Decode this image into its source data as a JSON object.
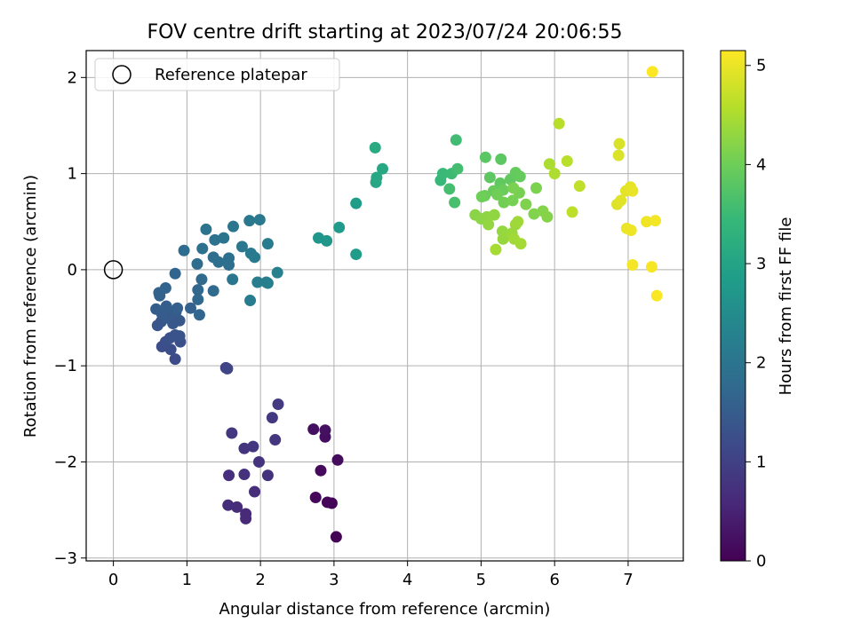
{
  "chart_data": {
    "type": "scatter",
    "title": "FOV centre drift starting at 2023/07/24 20:06:55",
    "xlabel": "Angular distance from reference (arcmin)",
    "ylabel": "Rotation from reference (arcmin)",
    "xlim": [
      -0.37,
      7.75
    ],
    "ylim": [
      -3.03,
      2.28
    ],
    "xticks": [
      0,
      1,
      2,
      3,
      4,
      5,
      6,
      7
    ],
    "yticks": [
      -3,
      -2,
      -1,
      0,
      1,
      2
    ],
    "grid": true,
    "legend": {
      "placement": "top-left",
      "entries": [
        "Reference platepar"
      ]
    },
    "reference_point": {
      "x": 0,
      "y": 0,
      "label": "Reference platepar"
    },
    "colorbar": {
      "label": "Hours from first FF file",
      "range": [
        0,
        5.15
      ],
      "ticks": [
        0,
        1,
        2,
        3,
        4,
        5
      ],
      "colormap": "viridis",
      "stops": [
        "#440154",
        "#482878",
        "#3e4989",
        "#31688e",
        "#26828e",
        "#1f9e89",
        "#35b779",
        "#6ece58",
        "#b5de2b",
        "#fde725"
      ]
    },
    "points": [
      {
        "x": 3.03,
        "y": -2.78,
        "h": 0.02
      },
      {
        "x": 2.97,
        "y": -2.43,
        "h": 0.05
      },
      {
        "x": 2.91,
        "y": -2.42,
        "h": 0.08
      },
      {
        "x": 2.75,
        "y": -2.37,
        "h": 0.1
      },
      {
        "x": 2.82,
        "y": -2.09,
        "h": 0.13
      },
      {
        "x": 3.05,
        "y": -1.98,
        "h": 0.16
      },
      {
        "x": 2.88,
        "y": -1.74,
        "h": 0.18
      },
      {
        "x": 2.72,
        "y": -1.66,
        "h": 0.2
      },
      {
        "x": 2.88,
        "y": -1.67,
        "h": 0.22
      },
      {
        "x": 1.8,
        "y": -2.59,
        "h": 0.6
      },
      {
        "x": 1.8,
        "y": -2.54,
        "h": 0.62
      },
      {
        "x": 1.68,
        "y": -2.47,
        "h": 0.64
      },
      {
        "x": 1.56,
        "y": -2.45,
        "h": 0.66
      },
      {
        "x": 1.92,
        "y": -2.31,
        "h": 0.68
      },
      {
        "x": 1.57,
        "y": -2.14,
        "h": 0.7
      },
      {
        "x": 1.78,
        "y": -2.13,
        "h": 0.72
      },
      {
        "x": 2.1,
        "y": -2.14,
        "h": 0.74
      },
      {
        "x": 1.98,
        "y": -2.0,
        "h": 0.76
      },
      {
        "x": 1.78,
        "y": -1.86,
        "h": 0.78
      },
      {
        "x": 1.9,
        "y": -1.84,
        "h": 0.8
      },
      {
        "x": 2.2,
        "y": -1.77,
        "h": 0.82
      },
      {
        "x": 1.61,
        "y": -1.7,
        "h": 0.84
      },
      {
        "x": 2.16,
        "y": -1.54,
        "h": 0.86
      },
      {
        "x": 2.24,
        "y": -1.4,
        "h": 0.88
      },
      {
        "x": 1.53,
        "y": -1.02,
        "h": 1.05
      },
      {
        "x": 1.55,
        "y": -1.03,
        "h": 1.07
      },
      {
        "x": 0.84,
        "y": -0.93,
        "h": 1.2
      },
      {
        "x": 0.66,
        "y": -0.8,
        "h": 1.22
      },
      {
        "x": 0.78,
        "y": -0.83,
        "h": 1.24
      },
      {
        "x": 0.71,
        "y": -0.75,
        "h": 1.26
      },
      {
        "x": 0.91,
        "y": -0.75,
        "h": 1.28
      },
      {
        "x": 0.77,
        "y": -0.71,
        "h": 1.3
      },
      {
        "x": 0.9,
        "y": -0.69,
        "h": 1.32
      },
      {
        "x": 0.84,
        "y": -0.68,
        "h": 1.34
      },
      {
        "x": 0.6,
        "y": -0.58,
        "h": 1.36
      },
      {
        "x": 0.65,
        "y": -0.54,
        "h": 1.38
      },
      {
        "x": 0.81,
        "y": -0.56,
        "h": 1.4
      },
      {
        "x": 0.9,
        "y": -0.53,
        "h": 1.42
      },
      {
        "x": 0.72,
        "y": -0.5,
        "h": 1.44
      },
      {
        "x": 0.78,
        "y": -0.47,
        "h": 1.46
      },
      {
        "x": 0.66,
        "y": -0.46,
        "h": 1.48
      },
      {
        "x": 0.85,
        "y": -0.44,
        "h": 1.5
      },
      {
        "x": 0.58,
        "y": -0.41,
        "h": 1.52
      },
      {
        "x": 0.72,
        "y": -0.38,
        "h": 1.54
      },
      {
        "x": 0.87,
        "y": -0.4,
        "h": 1.56
      },
      {
        "x": 1.05,
        "y": -0.4,
        "h": 1.58
      },
      {
        "x": 0.63,
        "y": -0.27,
        "h": 1.6
      },
      {
        "x": 0.62,
        "y": -0.24,
        "h": 1.62
      },
      {
        "x": 0.71,
        "y": -0.19,
        "h": 1.64
      },
      {
        "x": 0.84,
        "y": -0.04,
        "h": 1.66
      },
      {
        "x": 1.17,
        "y": -0.47,
        "h": 1.7
      },
      {
        "x": 1.15,
        "y": -0.31,
        "h": 1.72
      },
      {
        "x": 1.15,
        "y": -0.21,
        "h": 1.74
      },
      {
        "x": 1.36,
        "y": -0.22,
        "h": 1.76
      },
      {
        "x": 1.2,
        "y": -0.1,
        "h": 1.78
      },
      {
        "x": 1.14,
        "y": 0.06,
        "h": 1.8
      },
      {
        "x": 0.96,
        "y": 0.2,
        "h": 1.82
      },
      {
        "x": 1.36,
        "y": 0.13,
        "h": 1.84
      },
      {
        "x": 1.43,
        "y": 0.08,
        "h": 1.86
      },
      {
        "x": 1.57,
        "y": 0.05,
        "h": 1.88
      },
      {
        "x": 1.57,
        "y": 0.12,
        "h": 1.9
      },
      {
        "x": 1.21,
        "y": 0.22,
        "h": 1.92
      },
      {
        "x": 1.38,
        "y": 0.31,
        "h": 1.94
      },
      {
        "x": 1.5,
        "y": 0.33,
        "h": 1.96
      },
      {
        "x": 1.26,
        "y": 0.42,
        "h": 1.98
      },
      {
        "x": 1.63,
        "y": 0.45,
        "h": 2.0
      },
      {
        "x": 1.62,
        "y": -0.1,
        "h": 2.02
      },
      {
        "x": 1.75,
        "y": 0.24,
        "h": 2.04
      },
      {
        "x": 1.85,
        "y": 0.51,
        "h": 2.06
      },
      {
        "x": 1.99,
        "y": 0.52,
        "h": 2.08
      },
      {
        "x": 1.87,
        "y": 0.17,
        "h": 2.1
      },
      {
        "x": 1.92,
        "y": 0.13,
        "h": 2.12
      },
      {
        "x": 2.1,
        "y": 0.27,
        "h": 2.14
      },
      {
        "x": 1.86,
        "y": -0.32,
        "h": 2.16
      },
      {
        "x": 1.96,
        "y": -0.13,
        "h": 2.18
      },
      {
        "x": 2.08,
        "y": -0.13,
        "h": 2.2
      },
      {
        "x": 2.1,
        "y": -0.14,
        "h": 2.22
      },
      {
        "x": 2.23,
        "y": -0.03,
        "h": 2.24
      },
      {
        "x": 2.79,
        "y": 0.33,
        "h": 2.7
      },
      {
        "x": 2.9,
        "y": 0.3,
        "h": 2.72
      },
      {
        "x": 3.07,
        "y": 0.44,
        "h": 2.78
      },
      {
        "x": 3.3,
        "y": 0.16,
        "h": 2.82
      },
      {
        "x": 3.3,
        "y": 0.69,
        "h": 2.85
      },
      {
        "x": 3.57,
        "y": 0.91,
        "h": 3.05
      },
      {
        "x": 3.58,
        "y": 0.96,
        "h": 3.07
      },
      {
        "x": 3.66,
        "y": 1.05,
        "h": 3.1
      },
      {
        "x": 3.56,
        "y": 1.27,
        "h": 3.13
      },
      {
        "x": 4.45,
        "y": 0.93,
        "h": 3.45
      },
      {
        "x": 4.48,
        "y": 1.0,
        "h": 3.47
      },
      {
        "x": 4.6,
        "y": 1.0,
        "h": 3.5
      },
      {
        "x": 4.66,
        "y": 1.35,
        "h": 3.55
      },
      {
        "x": 4.68,
        "y": 1.05,
        "h": 3.58
      },
      {
        "x": 4.57,
        "y": 0.84,
        "h": 3.6
      },
      {
        "x": 4.64,
        "y": 0.7,
        "h": 3.63
      },
      {
        "x": 5.06,
        "y": 1.17,
        "h": 3.8
      },
      {
        "x": 5.27,
        "y": 1.15,
        "h": 3.82
      },
      {
        "x": 5.12,
        "y": 0.96,
        "h": 3.84
      },
      {
        "x": 5.26,
        "y": 0.9,
        "h": 3.86
      },
      {
        "x": 5.4,
        "y": 0.94,
        "h": 3.88
      },
      {
        "x": 5.47,
        "y": 1.01,
        "h": 3.9
      },
      {
        "x": 5.53,
        "y": 0.97,
        "h": 3.92
      },
      {
        "x": 5.17,
        "y": 0.82,
        "h": 3.94
      },
      {
        "x": 5.3,
        "y": 0.83,
        "h": 3.96
      },
      {
        "x": 5.05,
        "y": 0.77,
        "h": 3.98
      },
      {
        "x": 5.01,
        "y": 0.76,
        "h": 4.0
      },
      {
        "x": 5.22,
        "y": 0.78,
        "h": 4.02
      },
      {
        "x": 5.31,
        "y": 0.7,
        "h": 4.04
      },
      {
        "x": 5.43,
        "y": 0.72,
        "h": 4.06
      },
      {
        "x": 5.52,
        "y": 0.8,
        "h": 4.08
      },
      {
        "x": 5.44,
        "y": 0.85,
        "h": 4.1
      },
      {
        "x": 5.75,
        "y": 0.85,
        "h": 4.12
      },
      {
        "x": 5.61,
        "y": 0.68,
        "h": 4.14
      },
      {
        "x": 5.72,
        "y": 0.58,
        "h": 4.16
      },
      {
        "x": 5.84,
        "y": 0.61,
        "h": 4.18
      },
      {
        "x": 5.9,
        "y": 0.55,
        "h": 4.2
      },
      {
        "x": 4.92,
        "y": 0.57,
        "h": 4.22
      },
      {
        "x": 5.0,
        "y": 0.53,
        "h": 4.24
      },
      {
        "x": 5.08,
        "y": 0.55,
        "h": 4.26
      },
      {
        "x": 5.18,
        "y": 0.57,
        "h": 4.28
      },
      {
        "x": 5.1,
        "y": 0.47,
        "h": 4.3
      },
      {
        "x": 5.29,
        "y": 0.4,
        "h": 4.32
      },
      {
        "x": 5.3,
        "y": 0.32,
        "h": 4.34
      },
      {
        "x": 5.42,
        "y": 0.38,
        "h": 4.36
      },
      {
        "x": 5.47,
        "y": 0.47,
        "h": 4.38
      },
      {
        "x": 5.5,
        "y": 0.5,
        "h": 4.4
      },
      {
        "x": 5.45,
        "y": 0.32,
        "h": 4.42
      },
      {
        "x": 5.54,
        "y": 0.27,
        "h": 4.44
      },
      {
        "x": 5.2,
        "y": 0.21,
        "h": 4.46
      },
      {
        "x": 5.93,
        "y": 1.1,
        "h": 4.5
      },
      {
        "x": 6.0,
        "y": 1.0,
        "h": 4.52
      },
      {
        "x": 6.06,
        "y": 1.52,
        "h": 4.6
      },
      {
        "x": 6.17,
        "y": 1.13,
        "h": 4.62
      },
      {
        "x": 6.24,
        "y": 0.6,
        "h": 4.64
      },
      {
        "x": 6.34,
        "y": 0.87,
        "h": 4.66
      },
      {
        "x": 6.88,
        "y": 1.31,
        "h": 4.85
      },
      {
        "x": 6.87,
        "y": 1.19,
        "h": 4.87
      },
      {
        "x": 6.85,
        "y": 0.68,
        "h": 4.9
      },
      {
        "x": 6.9,
        "y": 0.72,
        "h": 4.92
      },
      {
        "x": 6.97,
        "y": 0.82,
        "h": 4.94
      },
      {
        "x": 7.03,
        "y": 0.86,
        "h": 4.96
      },
      {
        "x": 7.06,
        "y": 0.82,
        "h": 4.98
      },
      {
        "x": 6.98,
        "y": 0.43,
        "h": 5.0
      },
      {
        "x": 7.04,
        "y": 0.41,
        "h": 5.02
      },
      {
        "x": 7.25,
        "y": 0.5,
        "h": 5.04
      },
      {
        "x": 7.37,
        "y": 0.51,
        "h": 5.06
      },
      {
        "x": 7.06,
        "y": 0.05,
        "h": 5.08
      },
      {
        "x": 7.32,
        "y": 0.03,
        "h": 5.1
      },
      {
        "x": 7.39,
        "y": -0.27,
        "h": 5.12
      },
      {
        "x": 7.33,
        "y": 2.06,
        "h": 5.14
      }
    ]
  }
}
